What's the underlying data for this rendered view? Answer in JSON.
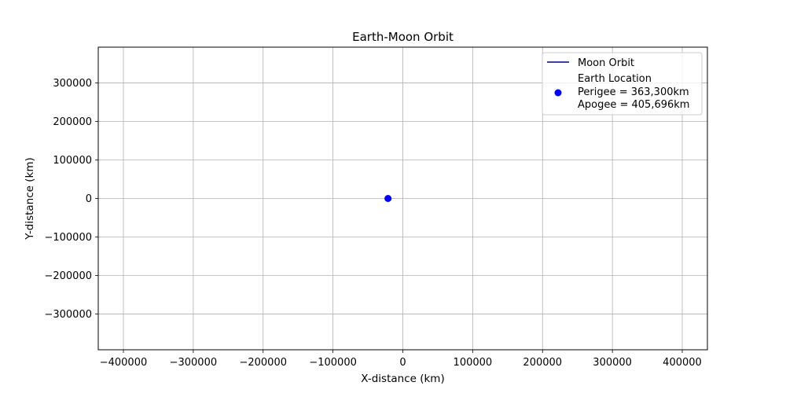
{
  "chart_data": {
    "type": "scatter",
    "title": "Earth-Moon Orbit",
    "xlabel": "X-distance (km)",
    "ylabel": "Y-distance (km)",
    "xlim": [
      -436000,
      436000
    ],
    "ylim": [
      -393000,
      393000
    ],
    "xticks": [
      -400000,
      -300000,
      -200000,
      -100000,
      0,
      100000,
      200000,
      300000,
      400000
    ],
    "xtick_labels": [
      "−400000",
      "−300000",
      "−200000",
      "−100000",
      "0",
      "100000",
      "200000",
      "300000",
      "400000"
    ],
    "yticks": [
      -300000,
      -200000,
      -100000,
      0,
      100000,
      200000,
      300000
    ],
    "ytick_labels": [
      "−300000",
      "−200000",
      "−100000",
      "0",
      "100000",
      "200000",
      "300000"
    ],
    "grid": true,
    "legend_position": "top-right",
    "series": [
      {
        "name": "Moon Orbit",
        "kind": "line",
        "color": "#000080",
        "x": [],
        "y": []
      },
      {
        "name": "Earth Location",
        "legend_lines": [
          "Earth Location",
          "Perigee = 363,300km",
          "Apogee = 405,696km"
        ],
        "kind": "scatter",
        "color": "#0000ff",
        "x": [
          -21200
        ],
        "y": [
          0
        ]
      }
    ]
  }
}
